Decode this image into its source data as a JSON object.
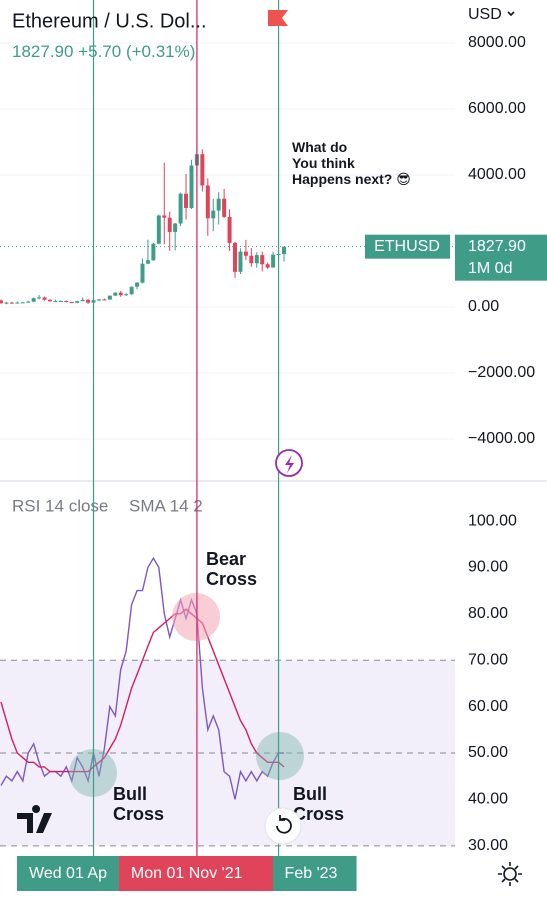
{
  "header": {
    "title": "Ethereum / U.S. Dol...",
    "last": "1827.90",
    "change": "+5.70",
    "change_pct": "(+0.31%)",
    "currency": "USD"
  },
  "chart_data": [
    {
      "type": "candlestick",
      "categories": [
        null,
        null,
        null,
        null,
        null,
        null,
        null,
        null,
        null,
        null,
        null,
        null,
        null,
        null,
        null,
        null,
        null,
        "Wed 01 Ap",
        null,
        null,
        null,
        null,
        null,
        null,
        null,
        null,
        null,
        null,
        null,
        null,
        null,
        null,
        null,
        null,
        null,
        null,
        "Mon 01 Nov '21",
        null,
        null,
        null,
        null,
        null,
        null,
        null,
        null,
        null,
        null,
        null,
        null,
        null,
        null,
        "Feb '23",
        null
      ],
      "open": [
        198,
        113,
        133,
        107,
        136,
        141,
        160,
        268,
        290,
        218,
        172,
        180,
        182,
        151,
        129,
        179,
        218,
        133,
        207,
        231,
        225,
        345,
        435,
        359,
        386,
        616,
        737,
        1314,
        1416,
        1919,
        2773,
        2707,
        2275,
        2530,
        3433,
        3001,
        4288,
        4630,
        3683,
        2688,
        2920,
        3282,
        2730,
        1942,
        1067,
        1678,
        1553,
        1328,
        1572,
        1296,
        1196,
        1586,
        1605
      ],
      "high": [
        230,
        160,
        160,
        165,
        150,
        185,
        290,
        365,
        318,
        238,
        225,
        198,
        195,
        153,
        185,
        288,
        252,
        227,
        245,
        255,
        348,
        445,
        488,
        420,
        620,
        755,
        1470,
        2040,
        1945,
        2800,
        4372,
        2890,
        2550,
        3470,
        4030,
        4460,
        4870,
        4780,
        3900,
        3280,
        3480,
        3580,
        2960,
        1970,
        1780,
        2030,
        1790,
        1660,
        1680,
        1350,
        1680,
        1740,
        1827.9
      ],
      "low": [
        100,
        82,
        100,
        102,
        125,
        138,
        158,
        230,
        190,
        165,
        150,
        153,
        137,
        117,
        127,
        178,
        90,
        130,
        176,
        215,
        222,
        335,
        308,
        335,
        372,
        536,
        715,
        1300,
        1400,
        1900,
        1900,
        1700,
        1718,
        2450,
        2650,
        2970,
        3960,
        3500,
        2160,
        2300,
        2500,
        2700,
        1700,
        880,
        1000,
        1420,
        1220,
        1190,
        1075,
        1150,
        1190,
        1460,
        1370
      ],
      "close": [
        113,
        133,
        107,
        136,
        141,
        160,
        268,
        290,
        218,
        172,
        180,
        182,
        151,
        129,
        179,
        218,
        133,
        207,
        231,
        225,
        345,
        435,
        359,
        386,
        616,
        737,
        1314,
        1416,
        1919,
        2773,
        2707,
        2275,
        2530,
        3433,
        3001,
        4288,
        4630,
        3683,
        2688,
        2920,
        3282,
        2730,
        1942,
        1067,
        1678,
        1553,
        1328,
        1572,
        1296,
        1196,
        1586,
        1605,
        1827.9
      ],
      "up_color": "#3f9d87",
      "down_color": "#e0445a",
      "ylim": [
        -5242,
        9303
      ],
      "yticks": [
        {
          "value": 8000,
          "label": "8000.00"
        },
        {
          "value": 6000,
          "label": "6000.00"
        },
        {
          "value": 4000,
          "label": "4000.00"
        },
        {
          "value": 0,
          "label": "0.00"
        },
        {
          "value": -2000,
          "label": "−2000.00"
        },
        {
          "value": -4000,
          "label": "−4000.00"
        }
      ],
      "grid": true,
      "symbol_label": "ETHUSD",
      "last_price_label": "1827.90",
      "countdown": "1M 0d",
      "annotations": [
        "What do\nYou think\nHappens next? 😎"
      ]
    },
    {
      "type": "line",
      "series": [
        {
          "name": "RSI 14 close",
          "color": "#7e57c2",
          "values": [
            43,
            45,
            44,
            46,
            44,
            50,
            52,
            48,
            45,
            46,
            46,
            45,
            47,
            44,
            49,
            47,
            44,
            50,
            45,
            51,
            60,
            58,
            68,
            72,
            82,
            85,
            85,
            90,
            92,
            90,
            80,
            75,
            79,
            83,
            79,
            83,
            80,
            64,
            55,
            58,
            55,
            46,
            45,
            40,
            46,
            44,
            46,
            44,
            46,
            45,
            48,
            50,
            50
          ]
        },
        {
          "name": "SMA 14 2",
          "color": "#d81b60",
          "values": [
            61,
            57,
            53,
            50,
            49,
            48,
            48,
            47,
            47,
            46,
            46,
            46,
            46,
            46,
            46,
            46,
            46,
            47,
            48,
            49,
            51,
            53,
            56,
            60,
            64,
            67,
            70,
            73,
            76,
            77,
            78,
            79,
            80,
            80,
            81,
            80,
            79,
            78,
            75,
            72,
            69,
            66,
            63,
            60,
            57,
            55,
            52,
            50,
            49,
            48,
            48,
            48,
            47
          ]
        }
      ],
      "ylim": [
        29.1,
        108.2
      ],
      "yticks": [
        {
          "value": 100,
          "label": "100.00"
        },
        {
          "value": 90,
          "label": "90.00"
        },
        {
          "value": 80,
          "label": "80.00"
        },
        {
          "value": 70,
          "label": "70.00"
        },
        {
          "value": 60,
          "label": "60.00"
        },
        {
          "value": 50,
          "label": "50.00"
        },
        {
          "value": 40,
          "label": "40.00"
        },
        {
          "value": 30,
          "label": "30.00"
        }
      ],
      "bands": {
        "upper": 70,
        "middle": 50,
        "lower": 30
      },
      "annotations": [
        "Bear\nCross",
        "Bull\nCross",
        "Bull\nCross"
      ]
    }
  ]
}
